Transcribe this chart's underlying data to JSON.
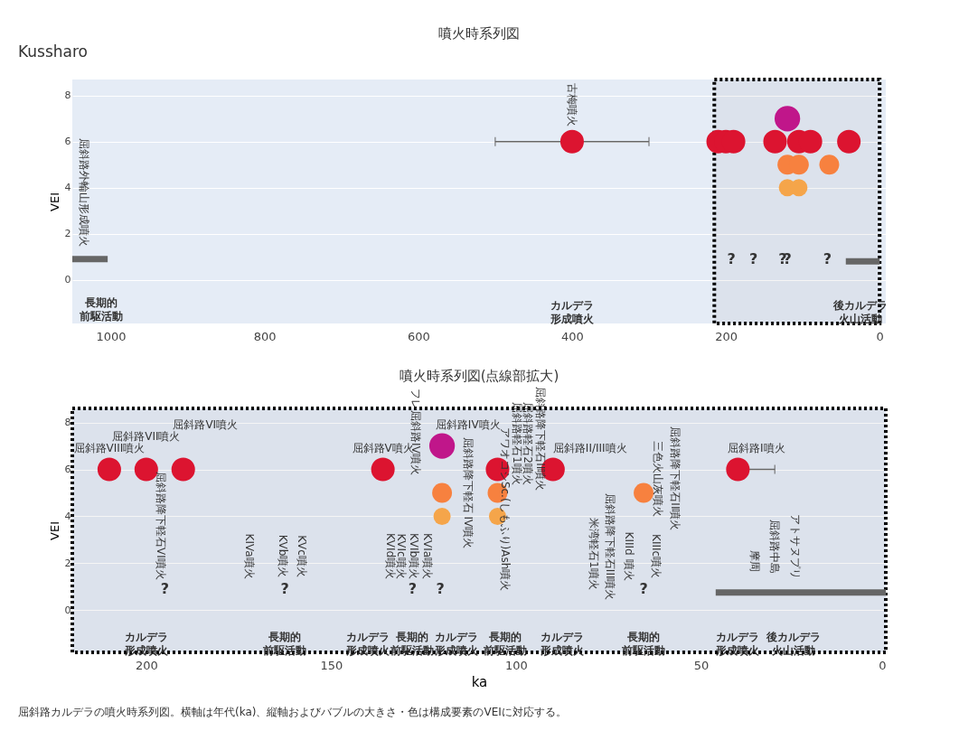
{
  "chart_data": [
    {
      "type": "bubble",
      "title": "噴火時系列図",
      "ylabel": "VEI",
      "xlim": [
        1050,
        -8
      ],
      "xticks": [
        1000,
        800,
        600,
        400,
        200,
        0
      ],
      "ylim": [
        -1.9,
        8.7
      ],
      "yticks": [
        0,
        2,
        4,
        6,
        8
      ],
      "grid": "y",
      "series": [
        {
          "color": "#dc1430",
          "x": [
            400,
            210,
            200,
            190,
            136,
            105,
            90,
            40
          ],
          "values": [
            6,
            6,
            6,
            6,
            6,
            6,
            6,
            6
          ],
          "sizes": [
            0.85,
            0.85,
            0.85,
            0.85,
            0.85,
            0.85,
            0.85,
            0.85
          ],
          "xerrors": [
            [
              300,
              500
            ],
            null,
            null,
            null,
            null,
            null,
            null,
            null
          ]
        },
        {
          "color": "#c0168a",
          "x": [
            120
          ],
          "values": [
            7
          ],
          "sizes": [
            1
          ]
        },
        {
          "color": "#f7813f",
          "x": [
            120,
            105,
            65.5
          ],
          "values": [
            5,
            5,
            5
          ],
          "sizes": [
            0.6,
            0.6,
            0.6
          ]
        },
        {
          "color": "#f5a54a",
          "x": [
            120,
            105
          ],
          "values": [
            4,
            4
          ],
          "sizes": [
            0.45,
            0.45
          ]
        },
        {
          "type": "line",
          "color": "#666666",
          "x": [
            1050,
            1004
          ],
          "values": [
            0.9,
            0.9
          ]
        },
        {
          "type": "line",
          "color": "#666666",
          "x": [
            44,
            0
          ],
          "values": [
            0.8,
            0.8
          ]
        }
      ],
      "bands": [
        {
          "axis": "x",
          "from": 215,
          "to": 0,
          "color": "#000000"
        }
      ],
      "annotations": [
        "Kussharo",
        "古梅噴火",
        "屈斜路外輪山形成噴火",
        "?",
        "?",
        "?",
        "?",
        "?",
        "長期的前駆活動",
        "カルデラ形成噴火",
        "後カルデラ火山活動"
      ]
    },
    {
      "type": "bubble",
      "title": "噴火時系列図(点線部拡大)",
      "xlabel": "ka",
      "ylabel": "VEI",
      "xlim": [
        220,
        0
      ],
      "xticks": [
        200,
        150,
        100,
        50,
        0
      ],
      "ylim": [
        -1.8,
        8.6
      ],
      "yticks": [
        0,
        2,
        4,
        6,
        8
      ],
      "grid": "y",
      "series": [
        {
          "color": "#dc1430",
          "x": [
            210,
            200,
            190,
            136,
            105,
            90,
            40
          ],
          "values": [
            6,
            6,
            6,
            6,
            6,
            6,
            6
          ],
          "sizes": [
            0.85,
            0.85,
            0.85,
            0.85,
            0.85,
            0.85,
            0.85
          ],
          "xerrors": [
            null,
            null,
            null,
            null,
            null,
            null,
            [
              30,
              40
            ]
          ]
        },
        {
          "color": "#c0168a",
          "x": [
            120
          ],
          "values": [
            7
          ],
          "sizes": [
            1
          ]
        },
        {
          "color": "#f7813f",
          "x": [
            120,
            105,
            65.5
          ],
          "values": [
            5,
            5,
            5
          ],
          "sizes": [
            0.6,
            0.6,
            0.6
          ]
        },
        {
          "color": "#f5a54a",
          "x": [
            120,
            105
          ],
          "values": [
            4,
            4
          ],
          "sizes": [
            0.45,
            0.45
          ]
        },
        {
          "type": "line",
          "color": "#666666",
          "x": [
            46,
            0
          ],
          "values": [
            0.75,
            0.75
          ]
        }
      ],
      "bands": [
        {
          "axis": "x",
          "from": 220,
          "to": 0,
          "color": "#000000"
        }
      ],
      "annotations": [
        "屈斜路VIII噴火",
        "屈斜路VII噴火",
        "屈斜路VI噴火",
        "屈斜路V噴火",
        "屈斜路IV噴火",
        "屈斜路II/III噴火",
        "屈斜路I噴火",
        "屈斜路降下軽石VI噴火",
        "KIVa噴火",
        "KVb噴火",
        "KVc噴火",
        "KVId噴火",
        "KVIc噴火",
        "KVIb噴火",
        "KVIa噴火",
        "フレ屈斜路IV噴火",
        "屈斜路降下軽石 IV噴火",
        "アワオコシSc.(しもふり)Ash噴火",
        "屈斜路軽石1噴火",
        "屈斜路軽石2噴火",
        "屈斜路降下軽石II噴火",
        "米湾軽石1噴火",
        "屈斜路降下軽石III噴火",
        "KIIId 噴火",
        "KIIIc噴火",
        "三色火山灰噴火",
        "屈斜路降下軽石II噴火",
        "摩周",
        "屈斜路中島",
        "アトサヌプリ",
        "?",
        "?",
        "?",
        "?",
        "?",
        "カルデラ形成噴火",
        "カルデラ形成噴火",
        "カルデラ形成噴火",
        "カルデラ形成噴火",
        "カルデラ形成噴火",
        "長期的前駆活動",
        "長期的前駆活動",
        "長期的前駆活動",
        "長期的前駆活動",
        "後カルデラ火山活動",
        "屈斜路カルデラの噴火時系列図。横軸は年代(ka)、縦軸およびバブルの大きさ・色は構成要素のVEIに対応する。"
      ]
    }
  ]
}
